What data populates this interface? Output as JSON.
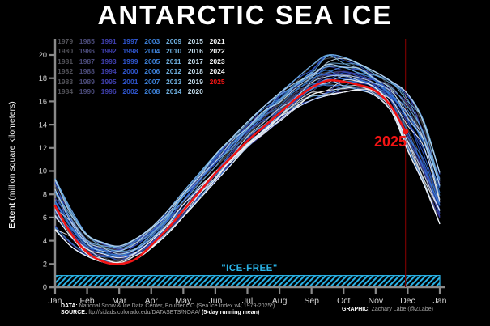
{
  "title": "ANTARCTIC SEA ICE",
  "y_axis": {
    "label_bold": "Extent",
    "label_rest": " (million square kilometers)",
    "ticks": [
      "0",
      "2",
      "4",
      "6",
      "8",
      "10",
      "12",
      "14",
      "16",
      "18",
      "20"
    ]
  },
  "x_axis": {
    "ticks": [
      "Jan",
      "Feb",
      "Mar",
      "Apr",
      "May",
      "Jun",
      "Jul",
      "Aug",
      "Sep",
      "Oct",
      "Nov",
      "Dec",
      "Jan"
    ]
  },
  "legend": {
    "highlight": {
      "year": "2025",
      "color": "#f21414"
    },
    "columns": [
      {
        "color": "#515158",
        "years": [
          "1979",
          "1980",
          "1981",
          "1982",
          "1983",
          "1984"
        ]
      },
      {
        "color": "#4a4a78",
        "years": [
          "1985",
          "1986",
          "1987",
          "1988",
          "1989",
          "1990"
        ]
      },
      {
        "color": "#3f3fae",
        "years": [
          "1991",
          "1992",
          "1993",
          "1994",
          "1995",
          "1996"
        ]
      },
      {
        "color": "#2e55cd",
        "years": [
          "1997",
          "1998",
          "1999",
          "2000",
          "2001",
          "2002"
        ]
      },
      {
        "color": "#3c80d8",
        "years": [
          "2003",
          "2004",
          "2005",
          "2006",
          "2007",
          "2008"
        ]
      },
      {
        "color": "#6fb0e0",
        "years": [
          "2009",
          "2010",
          "2011",
          "2012",
          "2013",
          "2014"
        ]
      },
      {
        "color": "#c3dcec",
        "years": [
          "2015",
          "2016",
          "2017",
          "2018",
          "2019",
          "2020"
        ]
      },
      {
        "color": "#f5f5f5",
        "years": [
          "2021",
          "2022",
          "2023",
          "2024",
          "2025"
        ]
      }
    ]
  },
  "annotations": {
    "current_year": "2025"
  },
  "footer": {
    "data_label": "DATA:",
    "data_text": " National Snow & Ice Data Center, Boulder CO (Sea Ice Index v4; 1979-2025*)",
    "source_label": "SOURCE:",
    "source_text": " ftp://sidads.colorado.edu/DATASETS/NOAA/ ",
    "source_note": "(5-day running mean)",
    "graphic_label": "GRAPHIC:",
    "graphic_text": " Zachary Labe (@ZLabe)"
  },
  "colors": {
    "background": "#000000",
    "axis": "#8a8a8a",
    "tick_label": "#d4d4d4",
    "highlight_red": "#f21414",
    "date_line_red": "#6e0000",
    "cyan": "#2ab4e8",
    "credit_gray": "#a8a8a8",
    "white": "#ffffff"
  },
  "chart_data": {
    "type": "line",
    "title": "ANTARCTIC SEA ICE",
    "xlabel": "",
    "ylabel": "Extent (million square kilometers)",
    "ylim": [
      0,
      20
    ],
    "yticks": [
      0,
      2,
      4,
      6,
      8,
      10,
      12,
      14,
      16,
      18,
      20
    ],
    "x_tick_labels": [
      "Jan",
      "Feb",
      "Mar",
      "Apr",
      "May",
      "Jun",
      "Jul",
      "Aug",
      "Sep",
      "Oct",
      "Nov",
      "Dec",
      "Jan"
    ],
    "grid": false,
    "legend_position": "upper-left",
    "background_years": {
      "start": 1979,
      "end": 2024
    },
    "x_months": [
      0,
      0.5,
      1,
      1.5,
      2,
      2.5,
      3,
      3.5,
      4,
      4.5,
      5,
      5.5,
      6,
      6.5,
      7,
      7.5,
      8,
      8.5,
      9,
      9.5,
      10,
      10.5,
      11,
      11.5,
      12
    ],
    "envelope_min": [
      4.8,
      3.4,
      2.6,
      2.1,
      1.9,
      2.3,
      3.3,
      4.5,
      6.0,
      7.5,
      9.0,
      10.5,
      12.0,
      13.1,
      14.2,
      15.3,
      16.0,
      16.4,
      16.7,
      16.9,
      16.4,
      15.0,
      11.6,
      8.7,
      5.3
    ],
    "envelope_max": [
      9.5,
      6.8,
      4.6,
      3.9,
      3.6,
      4.2,
      5.2,
      6.6,
      8.3,
      9.9,
      11.5,
      12.9,
      14.3,
      15.6,
      16.8,
      18.0,
      19.2,
      20.1,
      19.9,
      19.3,
      18.6,
      17.8,
      16.8,
      14.5,
      10.0
    ],
    "highlight_series": {
      "name": "2025",
      "color": "#f21414",
      "x": [
        0,
        0.5,
        1,
        1.5,
        2,
        2.5,
        3,
        3.5,
        4,
        4.5,
        5,
        5.5,
        6,
        6.5,
        7,
        7.5,
        8,
        8.5,
        9,
        9.5,
        10,
        10.5,
        10.93
      ],
      "values": [
        7.0,
        4.6,
        3.0,
        2.2,
        2.0,
        2.4,
        3.6,
        5.0,
        6.6,
        8.2,
        9.8,
        11.2,
        12.6,
        13.8,
        15.0,
        16.2,
        17.2,
        17.8,
        17.7,
        17.4,
        16.9,
        15.5,
        13.4
      ],
      "end_value": 13.4
    },
    "ice_free_band": {
      "from": 0,
      "to": 1,
      "label": "\"ICE-FREE\"",
      "color": "#2ab4e8"
    },
    "current_date_line": {
      "x_month": 10.93,
      "color": "#6e0000"
    }
  }
}
